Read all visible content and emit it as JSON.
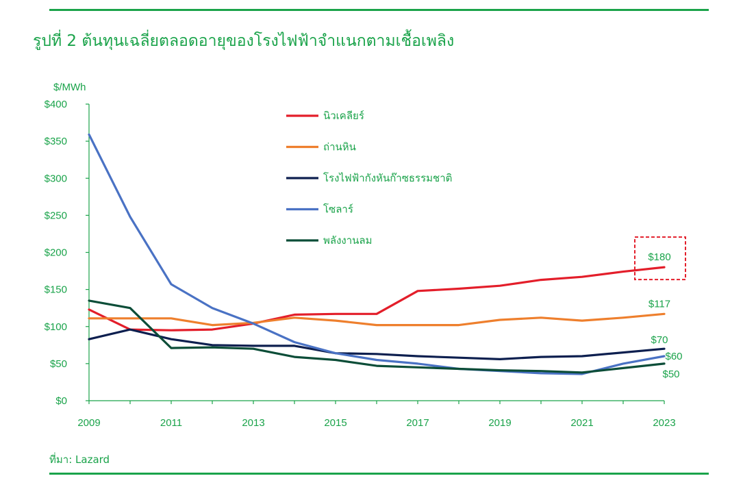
{
  "header": {
    "title": "รูปที่ 2 ต้นทุนเฉลี่ยตลอดอายุของโรงไฟฟ้าจำแนกตามเชื้อเพลิง"
  },
  "footer": {
    "source": "ที่มา: Lazard"
  },
  "colors": {
    "accent": "#1aa34a",
    "highlight_box": "#e31e2a"
  },
  "chart_data": {
    "type": "line",
    "ylabel": "$/MWh",
    "ylim": [
      0,
      400
    ],
    "y_ticks": [
      "$0",
      "$50",
      "$100",
      "$150",
      "$200",
      "$250",
      "$300",
      "$350",
      "$400"
    ],
    "y_tick_values": [
      0,
      50,
      100,
      150,
      200,
      250,
      300,
      350,
      400
    ],
    "x": [
      2009,
      2010,
      2011,
      2012,
      2013,
      2014,
      2015,
      2016,
      2017,
      2018,
      2019,
      2020,
      2021,
      2022,
      2023
    ],
    "x_ticks": [
      "2009",
      "2011",
      "2013",
      "2015",
      "2017",
      "2019",
      "2021",
      "2023"
    ],
    "x_tick_values": [
      2009,
      2011,
      2013,
      2015,
      2017,
      2019,
      2021,
      2023
    ],
    "grid": false,
    "legend_position": "top-center",
    "series": [
      {
        "name": "นิวเคลียร์",
        "color": "#e31e2a",
        "values": [
          123,
          96,
          95,
          96,
          104,
          116,
          117,
          117,
          148,
          151,
          155,
          163,
          167,
          174,
          180
        ]
      },
      {
        "name": "ถ่านหิน",
        "color": "#ee7f2d",
        "values": [
          111,
          111,
          111,
          102,
          105,
          112,
          108,
          102,
          102,
          102,
          109,
          112,
          108,
          112,
          117
        ]
      },
      {
        "name": "โรงไฟฟ้ากังหันก๊าซธรรมชาติ",
        "color": "#0d1f4f",
        "values": [
          83,
          96,
          83,
          75,
          74,
          74,
          64,
          63,
          60,
          58,
          56,
          59,
          60,
          65,
          70
        ]
      },
      {
        "name": "โซลาร์",
        "color": "#4a72c4",
        "values": [
          359,
          248,
          157,
          125,
          104,
          79,
          64,
          55,
          50,
          43,
          40,
          37,
          36,
          50,
          60
        ]
      },
      {
        "name": "พลังงานลม",
        "color": "#0c4d38",
        "values": [
          135,
          125,
          71,
          72,
          70,
          59,
          55,
          47,
          45,
          43,
          41,
          40,
          38,
          44,
          50
        ]
      }
    ],
    "annotations": [
      {
        "text": "$180",
        "x": 2023,
        "y": 180,
        "boxed": true
      },
      {
        "text": "$117",
        "x": 2023,
        "y": 117
      },
      {
        "text": "$70",
        "x": 2023,
        "y": 70
      },
      {
        "text": "$60",
        "x": 2023,
        "y": 60
      },
      {
        "text": "$50",
        "x": 2023,
        "y": 50
      }
    ]
  }
}
